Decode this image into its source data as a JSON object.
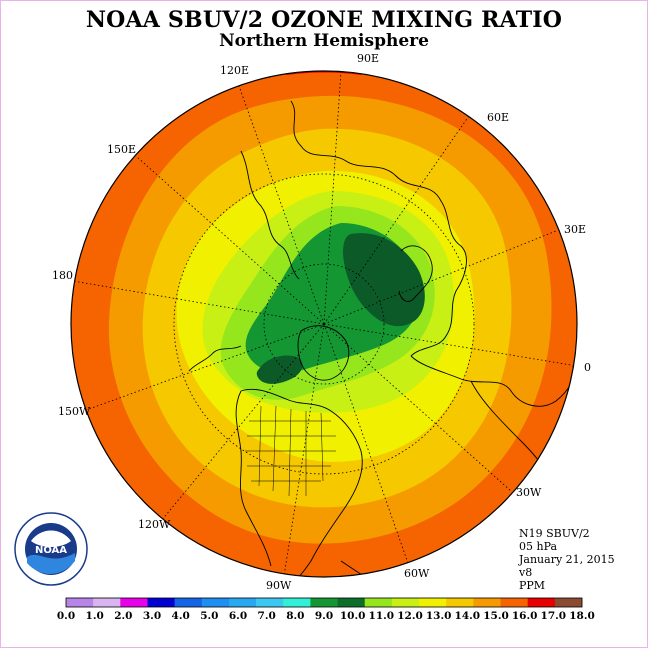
{
  "title": "NOAA SBUV/2 OZONE MIXING RATIO",
  "subtitle": "Northern Hemisphere",
  "longitude_labels": [
    "90E",
    "60E",
    "30E",
    "0",
    "30W",
    "60W",
    "90W",
    "120W",
    "150W",
    "180",
    "150E",
    "120E"
  ],
  "info": {
    "instrument": "N19 SBUV/2",
    "level": "05 hPa",
    "date": "January 21, 2015",
    "version": "v8",
    "units": "PPM"
  },
  "colorbar": {
    "ticks": [
      "0.0",
      "1.0",
      "2.0",
      "3.0",
      "4.0",
      "5.0",
      "6.0",
      "7.0",
      "8.0",
      "9.0",
      "10.0",
      "11.0",
      "12.0",
      "13.0",
      "14.0",
      "15.0",
      "16.0",
      "17.0",
      "18.0"
    ],
    "colors": [
      "#b784e8",
      "#d8b4f0",
      "#e800e8",
      "#0000d0",
      "#1464e6",
      "#1e8ef0",
      "#28a8f0",
      "#3cc8f0",
      "#32f0d8",
      "#149632",
      "#0c6e28",
      "#96e61e",
      "#c8f014",
      "#f0f000",
      "#f5c800",
      "#f59b00",
      "#f56400",
      "#e60000",
      "#8b4b32"
    ]
  },
  "map": {
    "contour_colors": {
      "outer_ring": "#f56400",
      "level_15": "#f59b00",
      "level_14": "#f5c800",
      "level_13": "#f0f000",
      "level_12": "#c8f014",
      "level_11": "#96e61e",
      "level_10": "#149632",
      "level_9": "#0c5a28",
      "red_patch": "#e60000"
    },
    "logo": "NOAA"
  }
}
